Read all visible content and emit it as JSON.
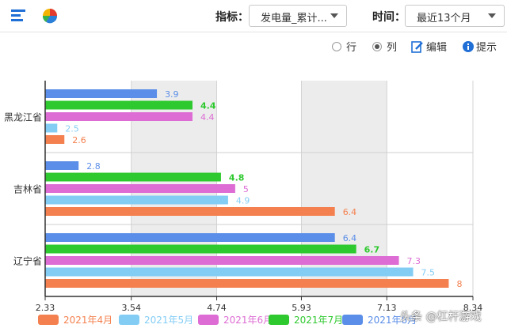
{
  "toolbar": {
    "indicator_label": "指标：",
    "indicator_value": "发电量_累计...",
    "time_label": "时间：",
    "time_value": "最近13个月",
    "icons": [
      "bar-chart-icon",
      "pie-chart-icon",
      "chevron-down-icon"
    ]
  },
  "options": {
    "row_label": "行",
    "col_label": "列",
    "selected": "列",
    "edit_label": "编辑",
    "tips_label": "提示"
  },
  "watermark": "头条 @杠杆游戏",
  "colors": {
    "2021年4月": "#f4804f",
    "2021年5月": "#83cdf5",
    "2021年6月": "#dd6cd4",
    "2021年7月": "#2ec92e",
    "2021年8月": "#5b8ee8"
  },
  "chart_data": {
    "type": "bar",
    "orientation": "horizontal",
    "categories": [
      "黑龙江省",
      "吉林省",
      "辽宁省"
    ],
    "series": [
      {
        "name": "2021年4月",
        "values": [
          2.6,
          6.4,
          8
        ]
      },
      {
        "name": "2021年5月",
        "values": [
          2.5,
          4.9,
          7.5
        ]
      },
      {
        "name": "2021年6月",
        "values": [
          4.4,
          5,
          7.3
        ]
      },
      {
        "name": "2021年7月",
        "values": [
          4.4,
          4.8,
          6.7
        ]
      },
      {
        "name": "2021年8月",
        "values": [
          3.9,
          2.8,
          6.4
        ]
      }
    ],
    "xlim": [
      2.33,
      8.34
    ],
    "xticks": [
      "2.33",
      "3.54",
      "4.74",
      "5.93",
      "7.13",
      "8.34"
    ],
    "grid": true,
    "legend": "bottom"
  }
}
